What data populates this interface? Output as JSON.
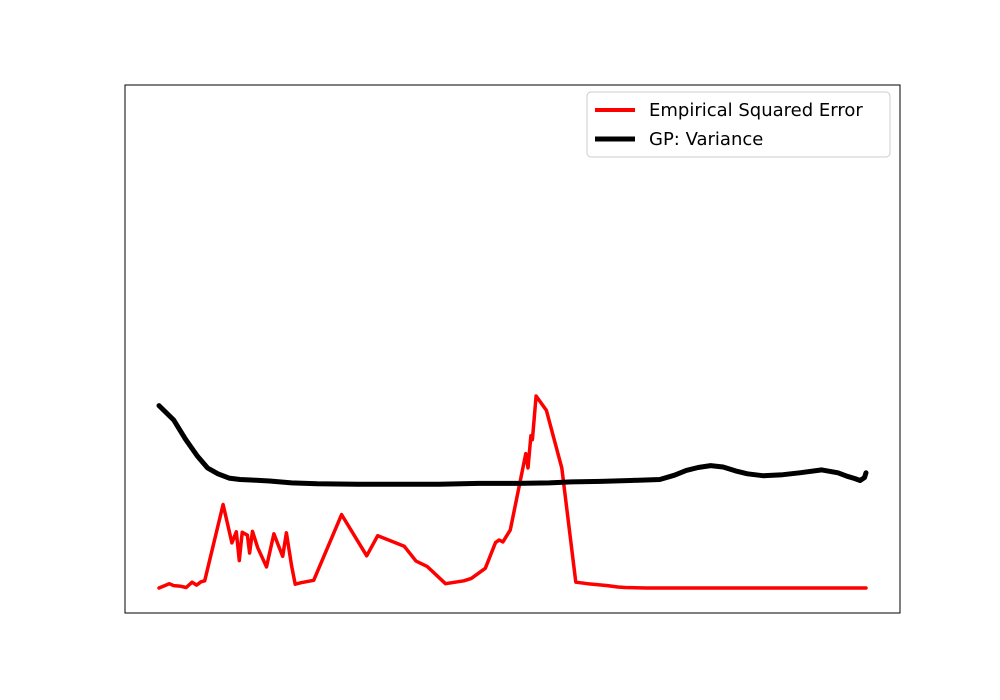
{
  "chart_data": {
    "type": "line",
    "title": "",
    "xlabel": "",
    "ylabel": "",
    "ticks_visible": false,
    "xlim": [
      0,
      1
    ],
    "ylim": [
      0,
      1
    ],
    "legend_position": "top-right",
    "series": [
      {
        "name": "Empirical Squared Error",
        "color": "#ff0000",
        "x": [
          0.0,
          0.014,
          0.02,
          0.028,
          0.037,
          0.045,
          0.051,
          0.057,
          0.062,
          0.087,
          0.099,
          0.105,
          0.109,
          0.113,
          0.12,
          0.123,
          0.127,
          0.134,
          0.146,
          0.156,
          0.162,
          0.168,
          0.173,
          0.18,
          0.185,
          0.193,
          0.21,
          0.248,
          0.282,
          0.297,
          0.333,
          0.349,
          0.364,
          0.389,
          0.414,
          0.424,
          0.443,
          0.457,
          0.462,
          0.467,
          0.477,
          0.498,
          0.501,
          0.505,
          0.507,
          0.512,
          0.526,
          0.547,
          0.566,
          0.582,
          0.609,
          0.623,
          0.633,
          0.662,
          0.678,
          0.683,
          0.694,
          0.698,
          0.699,
          0.71,
          0.711,
          0.715,
          0.716,
          0.726,
          0.727,
          0.731,
          0.737,
          0.753,
          0.779,
          0.782,
          0.785,
          0.802,
          0.821,
          0.836,
          0.849,
          0.96
        ],
        "y": [
          0.0,
          0.009,
          0.005,
          0.004,
          0.001,
          0.012,
          0.006,
          0.013,
          0.015,
          0.174,
          0.094,
          0.117,
          0.057,
          0.116,
          0.11,
          0.073,
          0.118,
          0.084,
          0.044,
          0.113,
          0.089,
          0.066,
          0.115,
          0.046,
          0.008,
          0.011,
          0.016,
          0.153,
          0.067,
          0.109,
          0.087,
          0.056,
          0.045,
          0.009,
          0.015,
          0.02,
          0.041,
          0.095,
          0.1,
          0.096,
          0.121,
          0.28,
          0.25,
          0.317,
          0.309,
          0.4,
          0.37,
          0.25,
          0.012,
          0.009,
          0.005,
          0.002,
          0.001,
          0.0,
          0.0,
          0.0,
          0.0,
          0.0,
          0.0,
          0.0,
          0.0,
          0.0,
          0.0,
          0.0,
          0.0,
          0.0,
          0.0,
          0.0,
          0.0,
          0.0,
          0.0,
          0.0,
          0.0,
          0.0,
          0.0,
          0.0
        ]
      },
      {
        "name": "GP: Variance",
        "color": "#000000",
        "x": [
          0.0,
          0.02,
          0.036,
          0.052,
          0.066,
          0.08,
          0.095,
          0.11,
          0.125,
          0.15,
          0.18,
          0.215,
          0.27,
          0.324,
          0.38,
          0.434,
          0.488,
          0.53,
          0.56,
          0.6,
          0.64,
          0.68,
          0.7,
          0.716,
          0.732,
          0.749,
          0.766,
          0.783,
          0.799,
          0.82,
          0.847,
          0.87,
          0.9,
          0.922,
          0.934,
          0.945,
          0.952,
          0.958,
          0.96
        ],
        "y": [
          0.38,
          0.35,
          0.31,
          0.275,
          0.25,
          0.238,
          0.229,
          0.226,
          0.225,
          0.223,
          0.219,
          0.217,
          0.216,
          0.216,
          0.216,
          0.218,
          0.218,
          0.219,
          0.221,
          0.222,
          0.224,
          0.226,
          0.235,
          0.245,
          0.251,
          0.255,
          0.252,
          0.244,
          0.238,
          0.234,
          0.236,
          0.24,
          0.246,
          0.24,
          0.233,
          0.228,
          0.224,
          0.23,
          0.24
        ]
      }
    ]
  }
}
